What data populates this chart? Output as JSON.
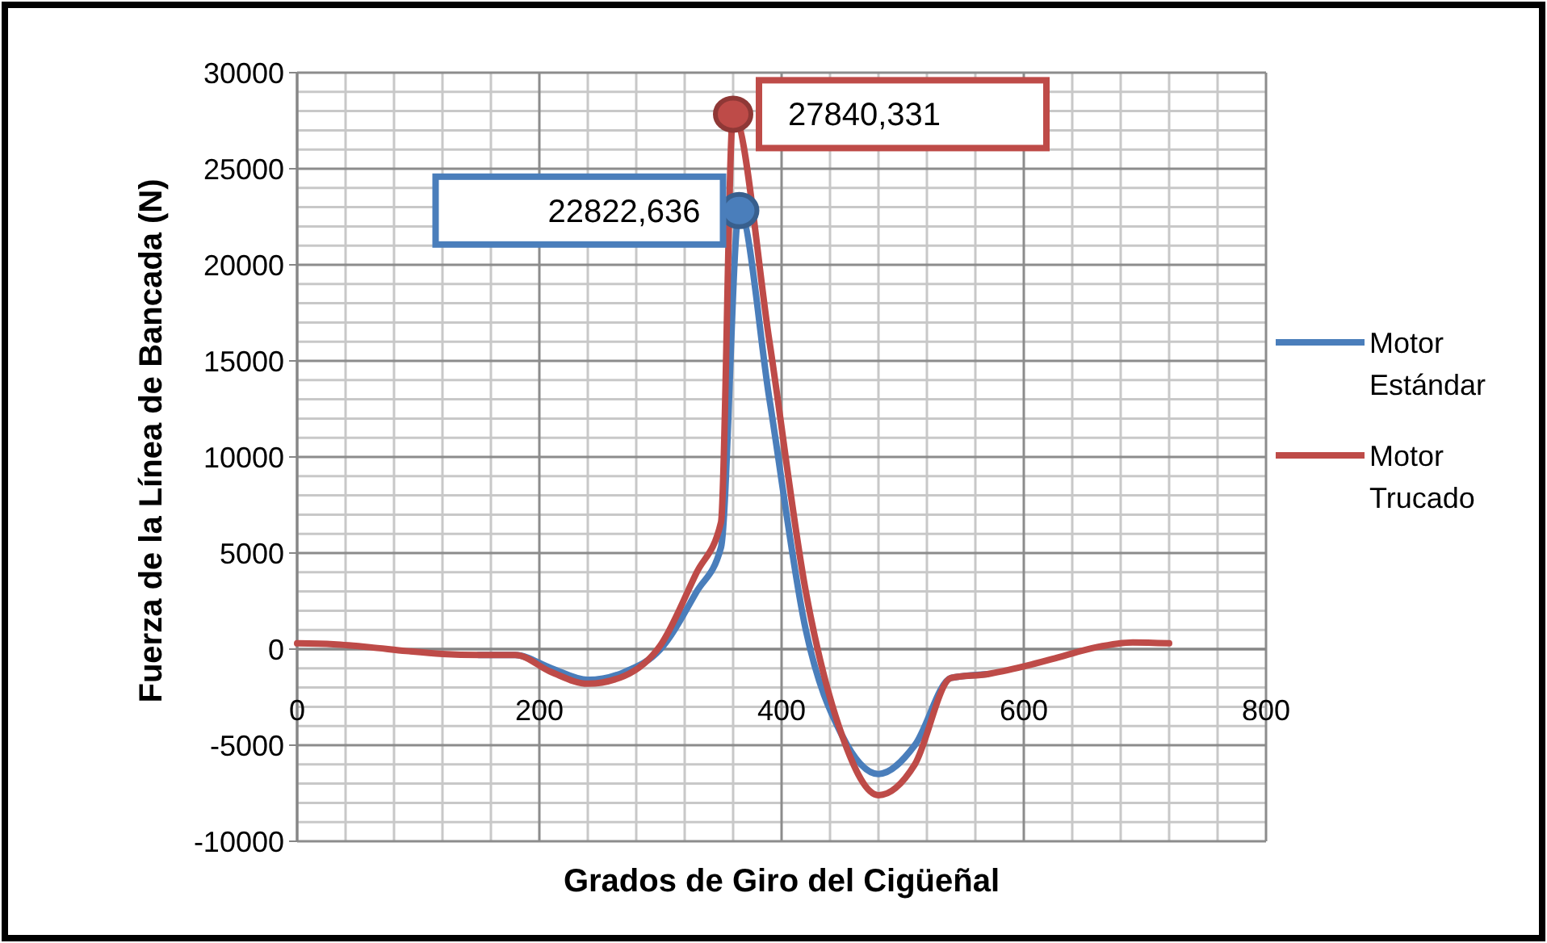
{
  "chart_data": {
    "type": "line",
    "xlabel": "Grados de Giro del Cigüeñal",
    "ylabel": "Fuerza de la Línea de Bancada (N)",
    "xlim": [
      0,
      800
    ],
    "xticks": [
      0,
      200,
      400,
      600,
      800
    ],
    "ylim": [
      -10000,
      30000
    ],
    "yticks": [
      -10000,
      -5000,
      0,
      5000,
      10000,
      15000,
      20000,
      25000,
      30000
    ],
    "grid": true,
    "legend": "right",
    "marker": "none",
    "series": [
      {
        "name": "Motor Estándar",
        "color": "#4a7ebb",
        "x": [
          150,
          180,
          210,
          240,
          270,
          300,
          330,
          350,
          365,
          390,
          420,
          450,
          480,
          510,
          540,
          570
        ],
        "values": [
          -300,
          -300,
          -1000,
          -1600,
          -1200,
          0,
          3000,
          5300,
          22822.636,
          13000,
          1000,
          -4500,
          -6500,
          -5000,
          -1500,
          -1300
        ]
      },
      {
        "name": "Motor Trucado",
        "color": "#be4b48",
        "x": [
          0,
          30,
          60,
          90,
          120,
          150,
          180,
          210,
          240,
          270,
          300,
          330,
          350,
          360,
          390,
          420,
          450,
          480,
          510,
          540,
          570,
          600,
          630,
          660,
          690,
          720
        ],
        "values": [
          300,
          250,
          100,
          -100,
          -250,
          -300,
          -300,
          -1200,
          -1800,
          -1400,
          200,
          4000,
          6600,
          27840.331,
          16000,
          3000,
          -4500,
          -7600,
          -6000,
          -1500,
          -1300,
          -900,
          -400,
          100,
          350,
          300
        ]
      }
    ],
    "annotations": [
      {
        "text": "22822,636",
        "x": 365,
        "y": 22822.636
      },
      {
        "text": "27840,331",
        "x": 360,
        "y": 27840.331
      }
    ]
  }
}
